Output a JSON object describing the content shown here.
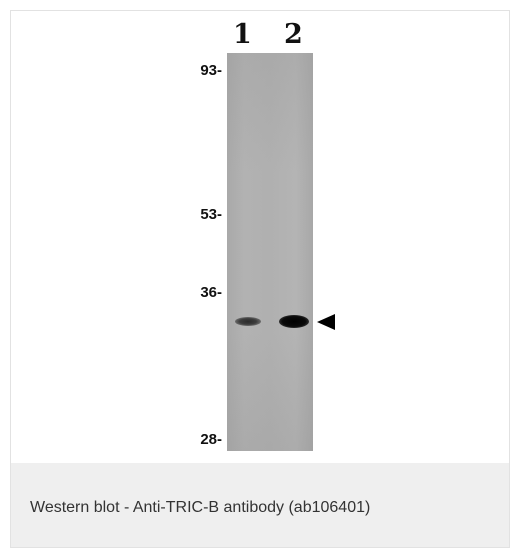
{
  "figure": {
    "lane_labels": [
      "1",
      "2"
    ],
    "markers": [
      "93-",
      "53-",
      "36-",
      "28-"
    ]
  },
  "caption": "Western blot - Anti-TRIC-B antibody (ab106401)"
}
